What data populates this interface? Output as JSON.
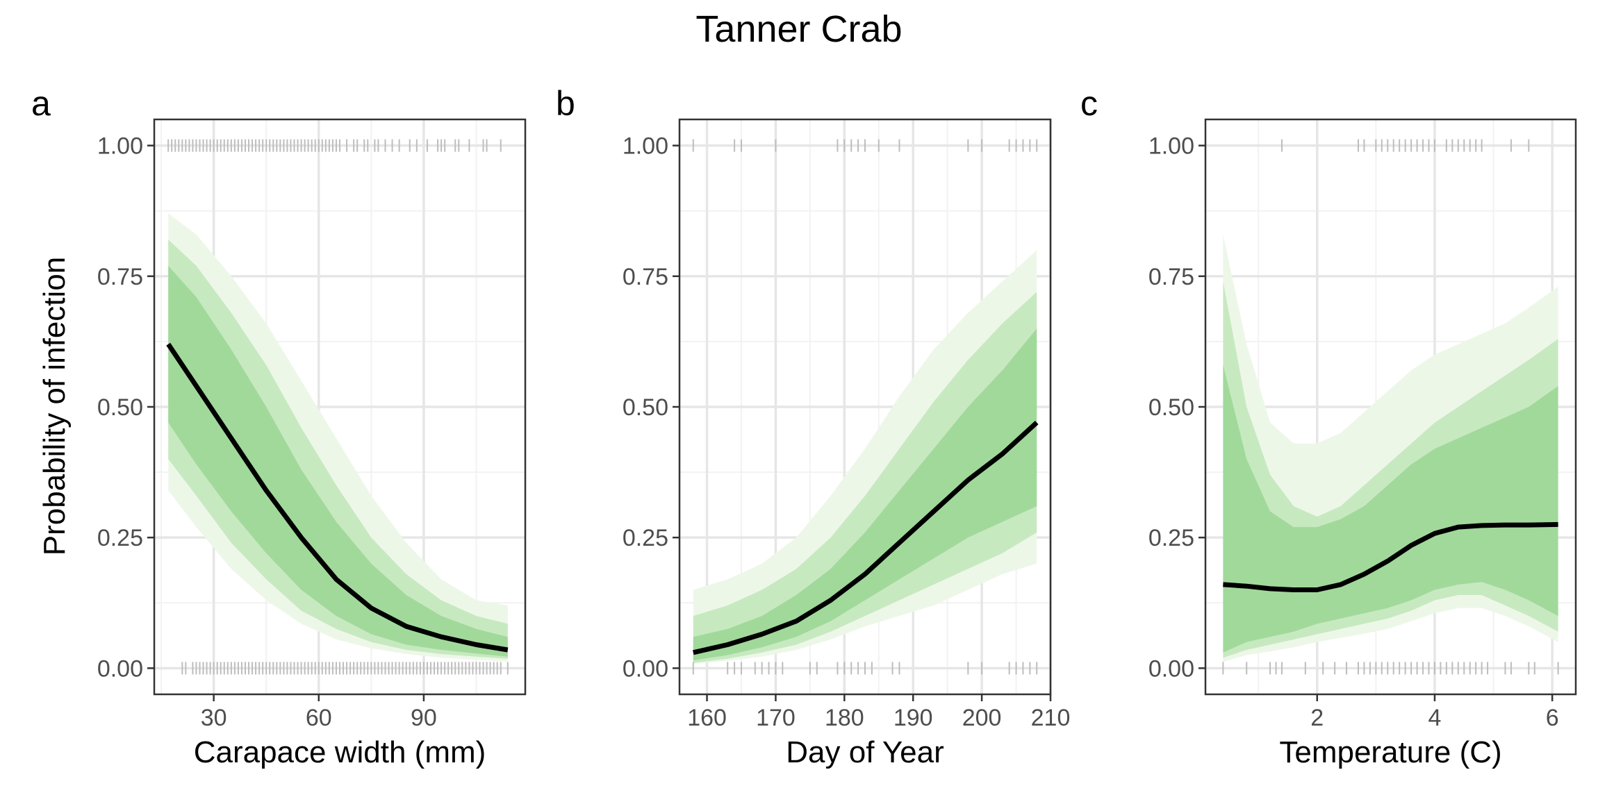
{
  "title": "Tanner Crab",
  "ylabel": "Probability of infection",
  "colors": {
    "band_outer": "#edf7e8",
    "band_mid": "#c7e9c0",
    "band_inner": "#a1d99b",
    "line": "#000000",
    "rug": "#bdbdbd",
    "grid_major": "#e6e6e6",
    "grid_minor": "#f2f2f2",
    "panel_border": "#333333"
  },
  "chart_data": [
    {
      "type": "line",
      "panel_label": "a",
      "xlabel": "Carapace width (mm)",
      "ylabel": "Probability of infection",
      "xlim": [
        13,
        119
      ],
      "ylim": [
        -0.05,
        1.05
      ],
      "xticks": [
        30,
        60,
        90
      ],
      "yticks": [
        0.0,
        0.25,
        0.5,
        0.75,
        1.0
      ],
      "ytick_labels": [
        "0.00",
        "0.25",
        "0.50",
        "0.75",
        "1.00"
      ],
      "series": [
        {
          "x": [
            17,
            25,
            35,
            45,
            55,
            65,
            75,
            85,
            95,
            105,
            114
          ],
          "y": [
            0.62,
            0.54,
            0.44,
            0.34,
            0.25,
            0.17,
            0.115,
            0.08,
            0.06,
            0.045,
            0.035
          ],
          "lo50": [
            0.47,
            0.39,
            0.3,
            0.22,
            0.15,
            0.1,
            0.065,
            0.045,
            0.035,
            0.028,
            0.022
          ],
          "hi50": [
            0.77,
            0.71,
            0.61,
            0.5,
            0.38,
            0.28,
            0.2,
            0.14,
            0.1,
            0.075,
            0.06
          ],
          "lo80": [
            0.4,
            0.33,
            0.24,
            0.17,
            0.11,
            0.075,
            0.05,
            0.035,
            0.027,
            0.022,
            0.018
          ],
          "hi80": [
            0.82,
            0.77,
            0.68,
            0.58,
            0.46,
            0.35,
            0.25,
            0.18,
            0.13,
            0.1,
            0.085
          ],
          "lo95": [
            0.34,
            0.27,
            0.19,
            0.13,
            0.085,
            0.055,
            0.038,
            0.027,
            0.02,
            0.016,
            0.013
          ],
          "hi95": [
            0.87,
            0.83,
            0.75,
            0.66,
            0.55,
            0.44,
            0.33,
            0.24,
            0.17,
            0.13,
            0.12
          ]
        }
      ],
      "rug_infected": [
        17,
        18,
        19,
        20,
        21,
        22,
        23,
        24,
        25,
        26,
        27,
        28,
        29,
        30,
        31,
        32,
        33,
        34,
        35,
        36,
        37,
        38,
        39,
        40,
        41,
        42,
        43,
        44,
        45,
        46,
        47,
        48,
        49,
        50,
        51,
        52,
        53,
        54,
        55,
        56,
        57,
        58,
        59,
        60,
        61,
        62,
        63,
        64,
        65,
        66,
        68,
        70,
        71,
        73,
        74,
        76,
        77,
        79,
        81,
        83,
        86,
        88,
        91,
        94,
        95,
        96,
        99,
        100,
        103,
        107,
        108,
        112
      ],
      "rug_uninfected": [
        21,
        22,
        24,
        25,
        26,
        27,
        28,
        29,
        30,
        31,
        32,
        33,
        34,
        35,
        36,
        37,
        38,
        39,
        40,
        41,
        42,
        43,
        44,
        45,
        46,
        47,
        48,
        49,
        50,
        51,
        52,
        53,
        54,
        55,
        56,
        57,
        58,
        59,
        60,
        61,
        62,
        63,
        64,
        65,
        66,
        67,
        68,
        69,
        70,
        71,
        72,
        73,
        74,
        75,
        76,
        77,
        78,
        79,
        80,
        81,
        82,
        83,
        84,
        85,
        86,
        87,
        88,
        89,
        90,
        91,
        92,
        93,
        94,
        95,
        96,
        97,
        98,
        99,
        100,
        101,
        102,
        103,
        104,
        105,
        106,
        107,
        108,
        109,
        110,
        111,
        112,
        114
      ]
    },
    {
      "type": "line",
      "panel_label": "b",
      "xlabel": "Day of Year",
      "xlim": [
        156,
        210
      ],
      "ylim": [
        -0.05,
        1.05
      ],
      "xticks": [
        160,
        170,
        180,
        190,
        200,
        210
      ],
      "yticks": [
        0.0,
        0.25,
        0.5,
        0.75,
        1.0
      ],
      "ytick_labels": [
        "0.00",
        "0.25",
        "0.50",
        "0.75",
        "1.00"
      ],
      "series": [
        {
          "x": [
            158,
            163,
            168,
            173,
            178,
            183,
            188,
            193,
            198,
            203,
            208
          ],
          "y": [
            0.03,
            0.045,
            0.065,
            0.09,
            0.13,
            0.18,
            0.24,
            0.3,
            0.36,
            0.41,
            0.47
          ],
          "lo50": [
            0.015,
            0.025,
            0.04,
            0.06,
            0.09,
            0.13,
            0.17,
            0.21,
            0.25,
            0.28,
            0.31
          ],
          "hi50": [
            0.06,
            0.075,
            0.1,
            0.14,
            0.19,
            0.26,
            0.34,
            0.42,
            0.5,
            0.57,
            0.65
          ],
          "lo80": [
            0.01,
            0.018,
            0.03,
            0.045,
            0.07,
            0.1,
            0.13,
            0.16,
            0.19,
            0.22,
            0.26
          ],
          "hi80": [
            0.1,
            0.12,
            0.15,
            0.19,
            0.25,
            0.33,
            0.42,
            0.51,
            0.59,
            0.66,
            0.72
          ],
          "lo95": [
            0.008,
            0.014,
            0.022,
            0.035,
            0.055,
            0.08,
            0.1,
            0.12,
            0.15,
            0.18,
            0.2
          ],
          "hi95": [
            0.15,
            0.17,
            0.2,
            0.25,
            0.33,
            0.42,
            0.52,
            0.61,
            0.68,
            0.74,
            0.8
          ]
        }
      ],
      "rug_infected": [
        158,
        164,
        165,
        170,
        179,
        180,
        181,
        182,
        183,
        185,
        188,
        198,
        200,
        204,
        205,
        206,
        207,
        208
      ],
      "rug_uninfected": [
        158,
        163,
        164,
        165,
        167,
        168,
        169,
        170,
        171,
        175,
        176,
        179,
        180,
        181,
        182,
        183,
        184,
        187,
        188,
        198,
        200,
        204,
        205,
        206,
        207,
        208
      ]
    },
    {
      "type": "line",
      "panel_label": "c",
      "xlabel": "Temperature (C)",
      "xlim": [
        0.1,
        6.4
      ],
      "ylim": [
        -0.05,
        1.05
      ],
      "xticks": [
        2,
        4,
        6
      ],
      "yticks": [
        0.0,
        0.25,
        0.5,
        0.75,
        1.0
      ],
      "ytick_labels": [
        "0.00",
        "0.25",
        "0.50",
        "0.75",
        "1.00"
      ],
      "series": [
        {
          "x": [
            0.4,
            0.8,
            1.2,
            1.6,
            2.0,
            2.4,
            2.8,
            3.2,
            3.6,
            4.0,
            4.4,
            4.8,
            5.2,
            5.6,
            6.1
          ],
          "y": [
            0.16,
            0.157,
            0.152,
            0.15,
            0.15,
            0.16,
            0.18,
            0.205,
            0.235,
            0.258,
            0.27,
            0.273,
            0.274,
            0.274,
            0.275
          ],
          "lo50": [
            0.03,
            0.05,
            0.06,
            0.07,
            0.085,
            0.095,
            0.105,
            0.115,
            0.13,
            0.15,
            0.16,
            0.165,
            0.15,
            0.13,
            0.1
          ],
          "hi50": [
            0.58,
            0.4,
            0.3,
            0.27,
            0.27,
            0.285,
            0.31,
            0.35,
            0.39,
            0.42,
            0.44,
            0.46,
            0.48,
            0.5,
            0.54
          ],
          "lo80": [
            0.02,
            0.035,
            0.045,
            0.055,
            0.065,
            0.075,
            0.085,
            0.095,
            0.11,
            0.13,
            0.14,
            0.14,
            0.12,
            0.1,
            0.07
          ],
          "hi80": [
            0.74,
            0.5,
            0.37,
            0.31,
            0.29,
            0.31,
            0.35,
            0.39,
            0.43,
            0.47,
            0.5,
            0.53,
            0.56,
            0.59,
            0.63
          ],
          "lo95": [
            0.012,
            0.025,
            0.032,
            0.04,
            0.05,
            0.058,
            0.066,
            0.075,
            0.09,
            0.105,
            0.115,
            0.115,
            0.1,
            0.08,
            0.05
          ],
          "hi95": [
            0.83,
            0.62,
            0.47,
            0.43,
            0.43,
            0.45,
            0.49,
            0.53,
            0.57,
            0.6,
            0.62,
            0.64,
            0.66,
            0.69,
            0.73
          ]
        }
      ],
      "rug_infected": [
        1.4,
        2.7,
        2.8,
        3.0,
        3.1,
        3.2,
        3.3,
        3.4,
        3.5,
        3.6,
        3.7,
        3.8,
        3.9,
        4.0,
        4.2,
        4.3,
        4.4,
        4.5,
        4.6,
        4.7,
        4.8,
        5.3,
        5.6
      ],
      "rug_uninfected": [
        0.4,
        0.8,
        1.2,
        1.3,
        1.4,
        1.8,
        2.1,
        2.3,
        2.5,
        2.7,
        2.8,
        2.9,
        3.0,
        3.1,
        3.2,
        3.3,
        3.4,
        3.5,
        3.6,
        3.7,
        3.8,
        3.9,
        4.0,
        4.1,
        4.2,
        4.3,
        4.4,
        4.5,
        4.6,
        4.7,
        4.8,
        4.9,
        5.2,
        5.3,
        5.6,
        5.7,
        6.1
      ]
    }
  ]
}
